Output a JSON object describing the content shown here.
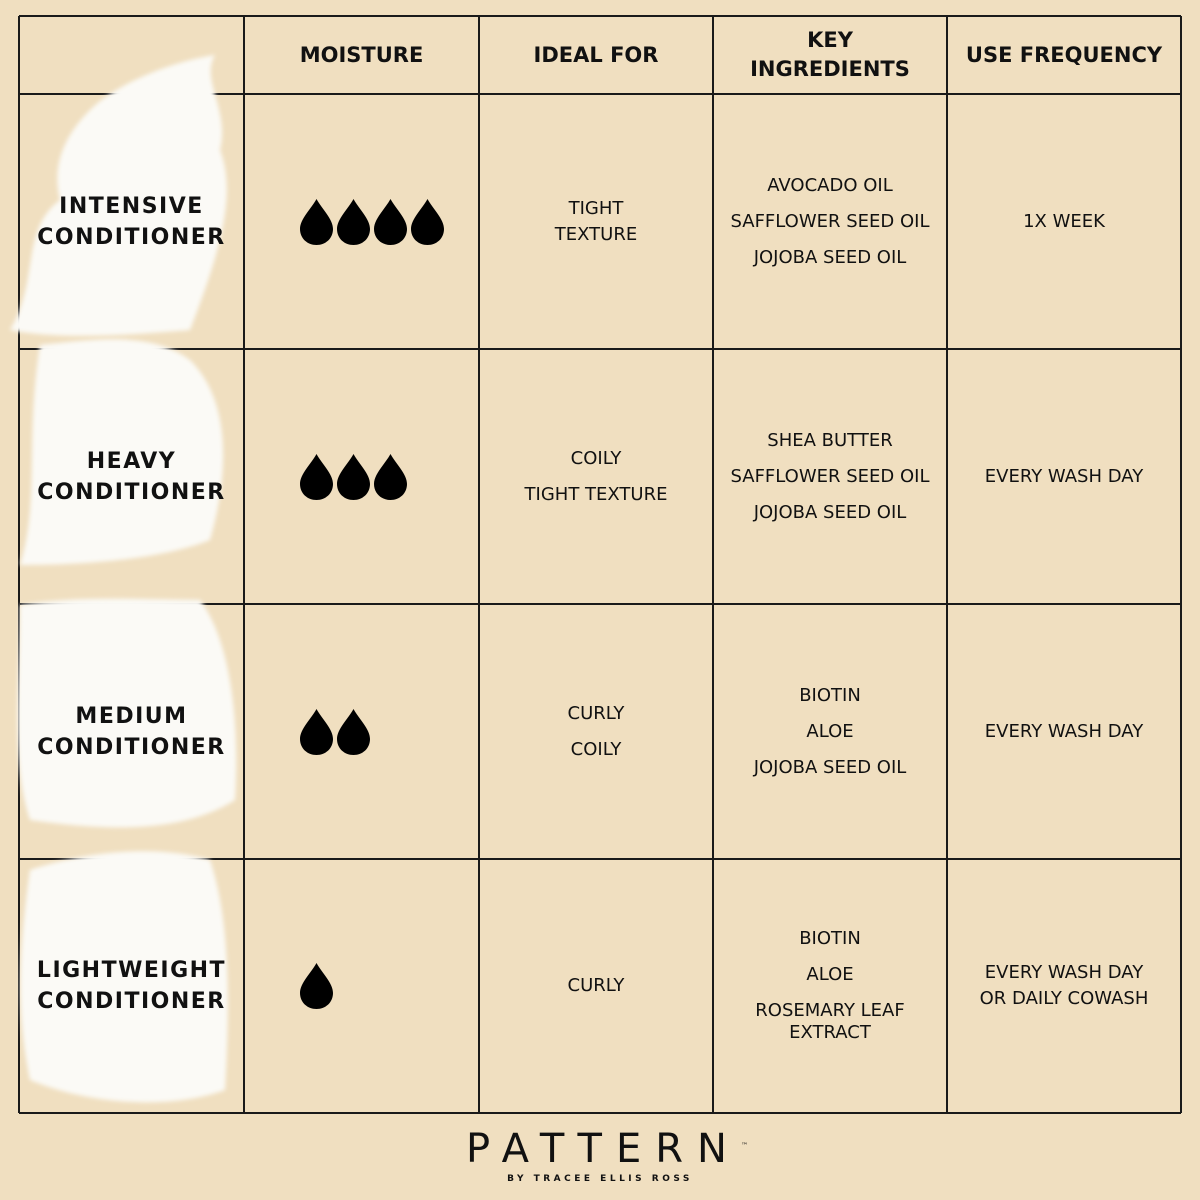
{
  "headers": [
    "",
    "MOISTURE",
    "IDEAL FOR",
    "KEY INGREDIENTS",
    "USE FREQUENCY"
  ],
  "rows": [
    {
      "name": [
        "INTENSIVE",
        "CONDITIONER"
      ],
      "moisture": 4,
      "ideal_for": [
        "TIGHT",
        "TEXTURE"
      ],
      "ingredients": [
        "AVOCADO OIL",
        "SAFFLOWER SEED OIL",
        "JOJOBA SEED OIL"
      ],
      "frequency": [
        "1X WEEK"
      ]
    },
    {
      "name": [
        "HEAVY",
        "CONDITIONER"
      ],
      "moisture": 3,
      "ideal_for": [
        "COILY",
        "TIGHT TEXTURE"
      ],
      "ingredients": [
        "SHEA BUTTER",
        "SAFFLOWER SEED OIL",
        "JOJOBA SEED OIL"
      ],
      "frequency": [
        "EVERY WASH DAY"
      ]
    },
    {
      "name": [
        "MEDIUM",
        "CONDITIONER"
      ],
      "moisture": 2,
      "ideal_for": [
        "CURLY",
        "COILY"
      ],
      "ingredients": [
        "BIOTIN",
        "ALOE",
        "JOJOBA SEED OIL"
      ],
      "frequency": [
        "EVERY WASH DAY"
      ]
    },
    {
      "name": [
        "LIGHTWEIGHT",
        "CONDITIONER"
      ],
      "moisture": 1,
      "ideal_for": [
        "CURLY"
      ],
      "ingredients": [
        "BIOTIN",
        "ALOE",
        "ROSEMARY LEAF EXTRACT"
      ],
      "frequency": [
        "EVERY WASH DAY",
        "OR DAILY COWASH"
      ]
    }
  ],
  "moisture_icon": "water-drop-icon",
  "colors": {
    "background": "#f0dfc0",
    "lines": "#1a1a1a",
    "text": "#111111",
    "cream": "#fbfaf6"
  },
  "logo": {
    "main": "PATTERN",
    "sub": "BY TRACEE ELLIS ROSS",
    "mark": "™"
  }
}
